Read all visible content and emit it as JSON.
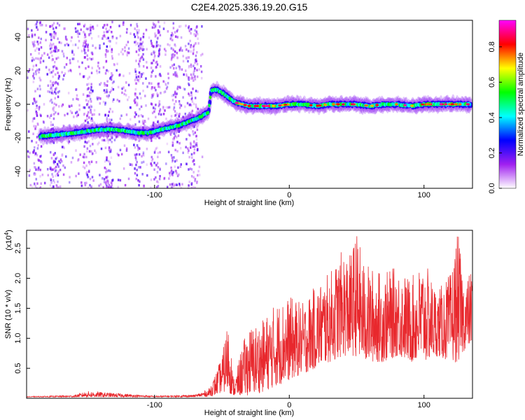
{
  "title": "C2E4.2025.336.19.20.G15",
  "colors": {
    "snr_line": "#e8282d",
    "track_low": "#6a2ad6",
    "background": "#ffffff",
    "axis": "#000000"
  },
  "chart_data": [
    {
      "type": "heatmap",
      "title": "C2E4.2025.336.19.20.G15",
      "xlabel": "Height of straight line (km)",
      "ylabel": "Frequency (Hz)",
      "xlim": [
        -195,
        136
      ],
      "ylim": [
        -50,
        50
      ],
      "x_ticks": [
        -100,
        0,
        100
      ],
      "y_ticks": [
        -40,
        -20,
        0,
        20,
        40
      ],
      "grid": false,
      "colorbar": {
        "label": "Normalized spectral amplitude",
        "range": [
          0.0,
          0.95
        ],
        "ticks": [
          "0.0",
          "0.2",
          "0.4",
          "0.6",
          "0.8"
        ],
        "tick_values": [
          0.0,
          0.2,
          0.4,
          0.6,
          0.8
        ],
        "colormap": [
          "#ffffff",
          "#a020f0",
          "#0000ff",
          "#00ffff",
          "#00ff00",
          "#ffff00",
          "#ff0000",
          "#ff00ff"
        ]
      },
      "track": {
        "x": [
          -185,
          -170,
          -160,
          -150,
          -140,
          -130,
          -120,
          -112,
          -105,
          -100,
          -90,
          -80,
          -70,
          -65,
          -60,
          -58,
          -55,
          -50,
          -45,
          -40,
          -35,
          -30,
          -20,
          -10,
          0,
          10,
          20,
          30,
          40,
          50,
          60,
          70,
          80,
          90,
          100,
          110,
          120,
          130,
          135
        ],
        "y": [
          -19,
          -18,
          -17,
          -16,
          -15,
          -15,
          -16,
          -17,
          -17,
          -16,
          -14,
          -12,
          -9,
          -7,
          -5,
          8,
          9,
          7,
          4,
          1,
          0,
          -1,
          -1,
          -1,
          0,
          0,
          -1,
          0,
          0,
          0,
          -1,
          0,
          0,
          -1,
          0,
          0,
          0,
          0,
          0
        ]
      }
    },
    {
      "type": "line",
      "xlabel": "Height of straight line (km)",
      "ylabel": "SNR (10 * v/v)",
      "y_multiplier_label": "(x10",
      "y_multiplier_exponent": "4",
      "y_multiplier_close": ")",
      "xlim": [
        -195,
        136
      ],
      "ylim": [
        0,
        2.8
      ],
      "x_ticks": [
        -100,
        0,
        100
      ],
      "y_ticks": [
        0.5,
        1.0,
        1.5,
        2.0,
        2.5
      ],
      "y_tick_labels": [
        "0.5",
        "1.0",
        "1.5",
        "2.0",
        "2.5"
      ],
      "grid": false,
      "series": [
        {
          "envelope_x": [
            -195,
            -160,
            -150,
            -100,
            -70,
            -60,
            -55,
            -50,
            -45,
            -42,
            -40,
            -35,
            -30,
            -20,
            -10,
            0,
            10,
            20,
            30,
            40,
            45,
            50,
            55,
            60,
            70,
            80,
            90,
            100,
            110,
            120,
            125,
            130,
            136
          ],
          "envelope_y": [
            0.03,
            0.05,
            0.12,
            0.04,
            0.06,
            0.15,
            0.4,
            0.7,
            1.4,
            0.4,
            0.35,
            0.9,
            1.2,
            1.3,
            1.6,
            1.7,
            1.6,
            1.9,
            2.1,
            2.5,
            2.4,
            2.8,
            2.3,
            2.2,
            2.1,
            2.2,
            2.0,
            2.3,
            1.8,
            2.1,
            2.8,
            1.9,
            2.2
          ],
          "floor_y": [
            0.02,
            0.02,
            0.02,
            0.02,
            0.02,
            0.03,
            0.05,
            0.1,
            0.1,
            0.05,
            0.03,
            0.05,
            0.05,
            0.1,
            0.2,
            0.3,
            0.4,
            0.5,
            0.6,
            0.7,
            0.7,
            0.7,
            0.6,
            0.6,
            0.6,
            0.7,
            0.6,
            0.6,
            0.7,
            0.6,
            0.6,
            0.8,
            0.9
          ]
        }
      ]
    }
  ]
}
